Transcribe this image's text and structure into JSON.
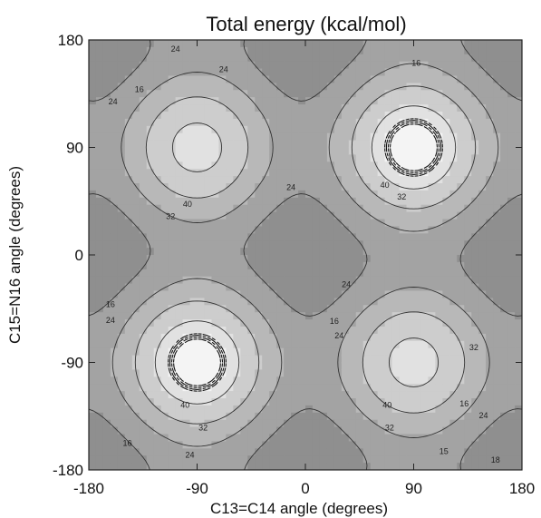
{
  "chart_data": {
    "type": "heatmap",
    "subtype": "contour",
    "title": "Total energy (kcal/mol)",
    "xlabel": "C13=C14 angle (degrees)",
    "ylabel": "C15=N16 angle (degrees)",
    "xlim": [
      -180,
      180
    ],
    "ylim": [
      -180,
      180
    ],
    "xticks": [
      -180,
      -90,
      0,
      90,
      180
    ],
    "yticks": [
      -180,
      -90,
      0,
      90,
      180
    ],
    "contour_levels": [
      8,
      16,
      24,
      32,
      40
    ],
    "labeled_contours": [
      {
        "text": "24",
        "x": -108,
        "y": 172
      },
      {
        "text": "16",
        "x": -138,
        "y": 138
      },
      {
        "text": "24",
        "x": -160,
        "y": 128
      },
      {
        "text": "24",
        "x": -68,
        "y": 155
      },
      {
        "text": "16",
        "x": 92,
        "y": 160
      },
      {
        "text": "40",
        "x": -98,
        "y": 42
      },
      {
        "text": "32",
        "x": -112,
        "y": 32
      },
      {
        "text": "24",
        "x": -12,
        "y": 56
      },
      {
        "text": "40",
        "x": 66,
        "y": 58
      },
      {
        "text": "32",
        "x": 80,
        "y": 48
      },
      {
        "text": "24",
        "x": 34,
        "y": -25
      },
      {
        "text": "16",
        "x": 24,
        "y": -56
      },
      {
        "text": "24",
        "x": 28,
        "y": -68
      },
      {
        "text": "16",
        "x": -162,
        "y": -42
      },
      {
        "text": "24",
        "x": -162,
        "y": -55
      },
      {
        "text": "40",
        "x": -100,
        "y": -126
      },
      {
        "text": "32",
        "x": -85,
        "y": -145
      },
      {
        "text": "40",
        "x": 68,
        "y": -126
      },
      {
        "text": "32",
        "x": 70,
        "y": -145
      },
      {
        "text": "32",
        "x": 140,
        "y": -78
      },
      {
        "text": "16",
        "x": 132,
        "y": -125
      },
      {
        "text": "24",
        "x": 148,
        "y": -135
      },
      {
        "text": "15",
        "x": 115,
        "y": -165
      },
      {
        "text": "16",
        "x": -148,
        "y": -158
      },
      {
        "text": "24",
        "x": -96,
        "y": -168
      },
      {
        "text": "18",
        "x": 158,
        "y": -172
      }
    ]
  }
}
